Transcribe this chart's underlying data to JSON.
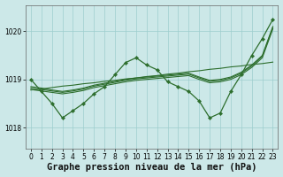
{
  "background_color": "#cce8e8",
  "line_color": "#2d6e2d",
  "marker_color": "#2d6e2d",
  "title": "Graphe pression niveau de la mer (hPa)",
  "title_fontsize": 7.5,
  "xlim": [
    -0.5,
    23.5
  ],
  "ylim": [
    1017.55,
    1020.55
  ],
  "yticks": [
    1018,
    1019,
    1020
  ],
  "xticks": [
    0,
    1,
    2,
    3,
    4,
    5,
    6,
    7,
    8,
    9,
    10,
    11,
    12,
    13,
    14,
    15,
    16,
    17,
    18,
    19,
    20,
    21,
    22,
    23
  ],
  "main_y": [
    1019.0,
    1018.75,
    1018.5,
    1018.2,
    1018.35,
    1018.5,
    1018.7,
    1018.85,
    1019.1,
    1019.35,
    1019.45,
    1019.3,
    1019.2,
    1018.95,
    1018.85,
    1018.75,
    1018.55,
    1018.2,
    1018.3,
    1018.75,
    1019.1,
    1019.5,
    1019.85,
    1020.25
  ],
  "smooth1_y": [
    1018.85,
    1018.82,
    1018.78,
    1018.75,
    1018.78,
    1018.82,
    1018.88,
    1018.92,
    1018.96,
    1019.0,
    1019.03,
    1019.05,
    1019.07,
    1019.09,
    1019.11,
    1019.13,
    1019.05,
    1018.98,
    1019.0,
    1019.05,
    1019.15,
    1019.3,
    1019.5,
    1020.1
  ],
  "smooth2_y": [
    1018.82,
    1018.79,
    1018.76,
    1018.73,
    1018.76,
    1018.8,
    1018.86,
    1018.9,
    1018.94,
    1018.98,
    1019.01,
    1019.03,
    1019.05,
    1019.07,
    1019.09,
    1019.11,
    1019.03,
    1018.96,
    1018.98,
    1019.03,
    1019.13,
    1019.28,
    1019.48,
    1020.08
  ],
  "smooth3_y": [
    1018.79,
    1018.76,
    1018.73,
    1018.7,
    1018.73,
    1018.77,
    1018.83,
    1018.87,
    1018.91,
    1018.95,
    1018.98,
    1019.0,
    1019.02,
    1019.04,
    1019.06,
    1019.08,
    1019.0,
    1018.93,
    1018.95,
    1019.0,
    1019.1,
    1019.25,
    1019.45,
    1020.05
  ],
  "trend_y": [
    1018.78,
    1018.8,
    1018.83,
    1018.86,
    1018.88,
    1018.91,
    1018.93,
    1018.96,
    1018.98,
    1019.01,
    1019.03,
    1019.06,
    1019.08,
    1019.11,
    1019.13,
    1019.16,
    1019.18,
    1019.21,
    1019.23,
    1019.26,
    1019.28,
    1019.31,
    1019.33,
    1019.36
  ]
}
